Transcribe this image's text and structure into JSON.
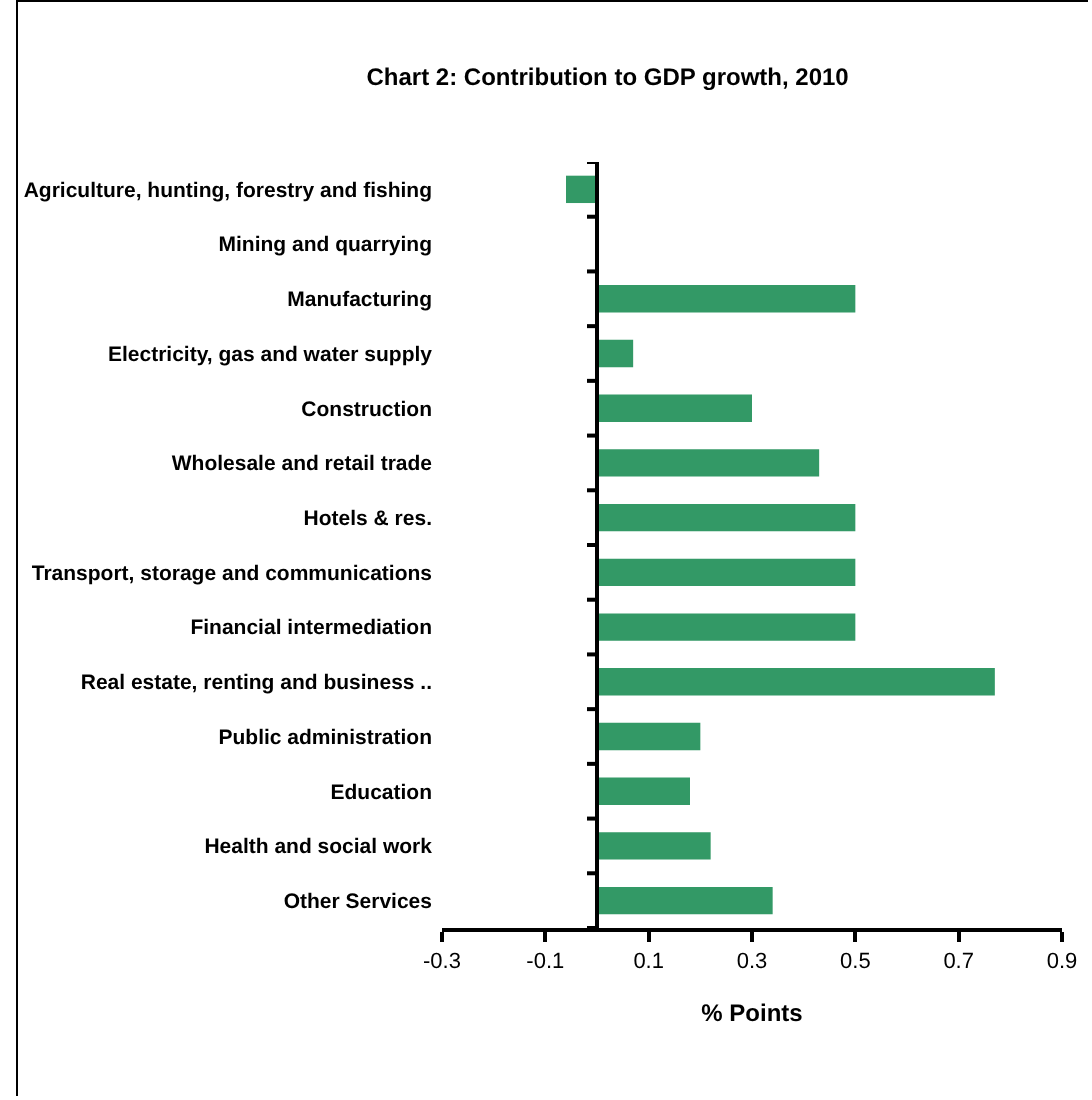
{
  "chart_data": {
    "type": "bar",
    "orientation": "horizontal",
    "title": "Chart 2: Contribution to GDP growth, 2010",
    "xlabel": "% Points",
    "categories": [
      "Agriculture, hunting, forestry and fishing",
      "Mining and quarrying",
      "Manufacturing",
      "Electricity, gas and water supply",
      "Construction",
      "Wholesale and retail trade",
      "Hotels & res.",
      "Transport, storage and communications",
      "Financial intermediation",
      "Real estate, renting and business ..",
      "Public administration",
      "Education",
      "Health and social work",
      "Other Services"
    ],
    "values": [
      -0.06,
      0,
      0.5,
      0.07,
      0.3,
      0.43,
      0.5,
      0.5,
      0.5,
      0.77,
      0.2,
      0.18,
      0.22,
      0.34
    ],
    "color": "#339966",
    "xlim": [
      -0.3,
      0.9
    ],
    "xticks": [
      -0.3,
      -0.1,
      0.1,
      0.3,
      0.5,
      0.7,
      0.9
    ],
    "grid": false,
    "legend": false
  }
}
